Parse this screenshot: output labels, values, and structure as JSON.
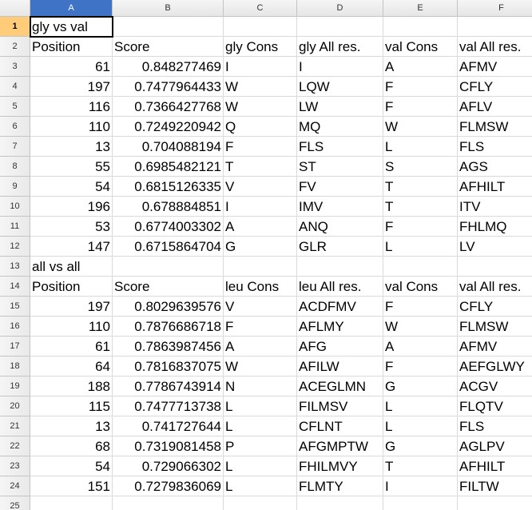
{
  "sheet": {
    "columns": [
      "A",
      "B",
      "C",
      "D",
      "E",
      "F"
    ],
    "selected_column": "A",
    "selected_row": 1,
    "rows": [
      {
        "n": "1",
        "cells": [
          "gly vs val",
          "",
          "",
          "",
          "",
          ""
        ]
      },
      {
        "n": "2",
        "cells": [
          "Position",
          "Score",
          "gly Cons",
          "gly All res.",
          "val Cons",
          "val All res."
        ]
      },
      {
        "n": "3",
        "cells": [
          "61",
          "0.848277469",
          "I",
          "I",
          "A",
          "AFMV"
        ]
      },
      {
        "n": "4",
        "cells": [
          "197",
          "0.7477964433",
          "W",
          "LQW",
          "F",
          "CFLY"
        ]
      },
      {
        "n": "5",
        "cells": [
          "116",
          "0.7366427768",
          "W",
          "LW",
          "F",
          "AFLV"
        ]
      },
      {
        "n": "6",
        "cells": [
          "110",
          "0.7249220942",
          "Q",
          "MQ",
          "W",
          "FLMSW"
        ]
      },
      {
        "n": "7",
        "cells": [
          "13",
          "0.704088194",
          "F",
          "FLS",
          "L",
          "FLS"
        ]
      },
      {
        "n": "8",
        "cells": [
          "55",
          "0.6985482121",
          "T",
          "ST",
          "S",
          "AGS"
        ]
      },
      {
        "n": "9",
        "cells": [
          "54",
          "0.6815126335",
          "V",
          "FV",
          "T",
          "AFHILT"
        ]
      },
      {
        "n": "10",
        "cells": [
          "196",
          "0.678884851",
          "I",
          "IMV",
          "T",
          "ITV"
        ]
      },
      {
        "n": "11",
        "cells": [
          "53",
          "0.6774003302",
          "A",
          "ANQ",
          "F",
          "FHLMQ"
        ]
      },
      {
        "n": "12",
        "cells": [
          "147",
          "0.6715864704",
          "G",
          "GLR",
          "L",
          "LV"
        ]
      },
      {
        "n": "13",
        "cells": [
          "all vs all",
          "",
          "",
          "",
          "",
          ""
        ]
      },
      {
        "n": "14",
        "cells": [
          "Position",
          "Score",
          "leu Cons",
          "leu All res.",
          "val Cons",
          "val All res."
        ]
      },
      {
        "n": "15",
        "cells": [
          "197",
          "0.8029639576",
          "V",
          "ACDFMV",
          "F",
          "CFLY"
        ]
      },
      {
        "n": "16",
        "cells": [
          "110",
          "0.7876686718",
          "F",
          "AFLMY",
          "W",
          "FLMSW"
        ]
      },
      {
        "n": "17",
        "cells": [
          "61",
          "0.7863987456",
          "A",
          "AFG",
          "A",
          "AFMV"
        ]
      },
      {
        "n": "18",
        "cells": [
          "64",
          "0.7816837075",
          "W",
          "AFILW",
          "F",
          "AEFGLWY"
        ]
      },
      {
        "n": "19",
        "cells": [
          "188",
          "0.7786743914",
          "N",
          "ACEGLMN",
          "G",
          "ACGV"
        ]
      },
      {
        "n": "20",
        "cells": [
          "115",
          "0.7477713738",
          "L",
          "FILMSV",
          "L",
          "FLQTV"
        ]
      },
      {
        "n": "21",
        "cells": [
          "13",
          "0.741727644",
          "L",
          "CFLNT",
          "L",
          "FLS"
        ]
      },
      {
        "n": "22",
        "cells": [
          "68",
          "0.7319081458",
          "P",
          "AFGMPTW",
          "G",
          "AGLPV"
        ]
      },
      {
        "n": "23",
        "cells": [
          "54",
          "0.729066302",
          "L",
          "FHILMVY",
          "T",
          "AFHILT"
        ]
      },
      {
        "n": "24",
        "cells": [
          "151",
          "0.7279836069",
          "L",
          "FLMTY",
          "I",
          "FILTW"
        ]
      },
      {
        "n": "25",
        "cells": [
          "",
          "",
          "",
          "",
          "",
          ""
        ]
      }
    ]
  }
}
